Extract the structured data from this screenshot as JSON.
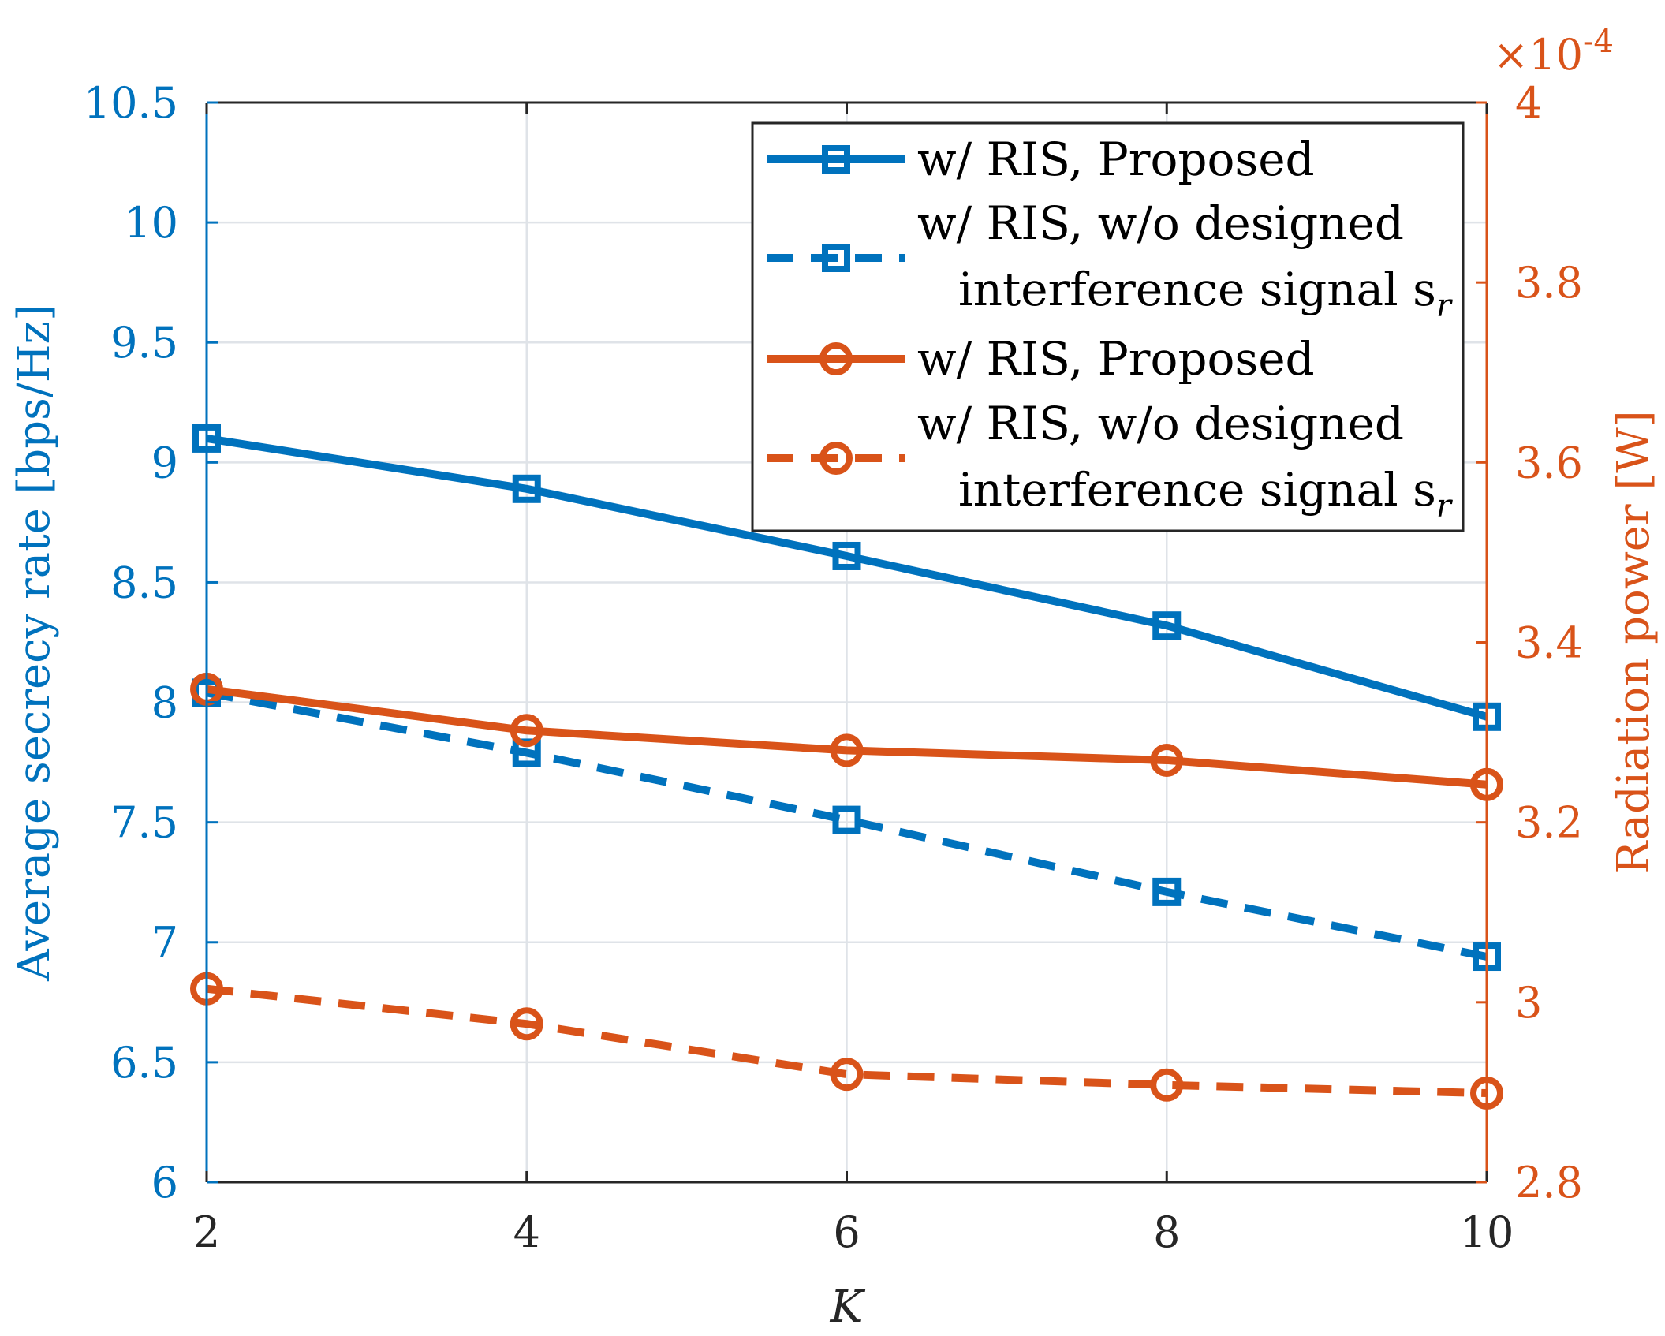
{
  "chart_data": {
    "type": "line",
    "xlabel": "K",
    "ylabel_left": "Average secrecy rate [bps/Hz]",
    "ylabel_right": "Radiation power [W]",
    "right_exponent": {
      "base": "×10",
      "power": "-4"
    },
    "x": [
      2,
      4,
      6,
      8,
      10
    ],
    "xlim": [
      2,
      10
    ],
    "xticks": [
      "2",
      "4",
      "6",
      "8",
      "10"
    ],
    "ylim_left": [
      6,
      10.5
    ],
    "yticks_left": [
      "6",
      "6.5",
      "7",
      "7.5",
      "8",
      "8.5",
      "9",
      "9.5",
      "10",
      "10.5"
    ],
    "ylim_right": [
      2.8,
      4.0
    ],
    "yticks_right": [
      "2.8",
      "3",
      "3.2",
      "3.4",
      "3.6",
      "3.8",
      "4"
    ],
    "grid": true,
    "legend_position": "top-right",
    "series": [
      {
        "name": "w/ RIS, Proposed",
        "axis": "left",
        "style": "solid",
        "marker": "square",
        "color": "#0072BD",
        "values": [
          9.1,
          8.89,
          8.61,
          8.32,
          7.94
        ]
      },
      {
        "name": "w/ RIS, w/o designed interference signal",
        "axis": "left",
        "style": "dashed",
        "marker": "square",
        "color": "#0072BD",
        "values": [
          8.04,
          7.79,
          7.51,
          7.21,
          6.94
        ]
      },
      {
        "name": "w/ RIS, Proposed",
        "axis": "right",
        "style": "solid",
        "marker": "circle",
        "color": "#D95319",
        "values": [
          3.348,
          3.302,
          3.28,
          3.269,
          3.242
        ]
      },
      {
        "name": "w/ RIS, w/o designed interference signal",
        "axis": "right",
        "style": "dashed",
        "marker": "circle",
        "color": "#D95319",
        "values": [
          3.015,
          2.976,
          2.92,
          2.908,
          2.899
        ]
      }
    ],
    "legend": [
      {
        "lines": [
          "w/ RIS, Proposed"
        ],
        "subscript": ""
      },
      {
        "lines": [
          "w/ RIS, w/o designed",
          "interference signal s"
        ],
        "subscript": "r"
      },
      {
        "lines": [
          "w/ RIS, Proposed"
        ],
        "subscript": ""
      },
      {
        "lines": [
          "w/ RIS, w/o designed",
          "interference signal s"
        ],
        "subscript": "r"
      }
    ]
  }
}
